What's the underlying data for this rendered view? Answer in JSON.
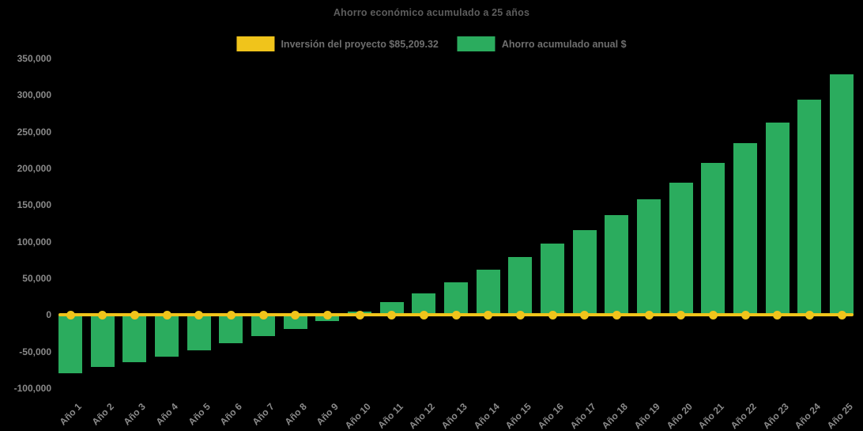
{
  "title": "Ahorro económico acumulado a 25 años",
  "legend": {
    "items": [
      {
        "label": "Inversión del proyecto $85,209.32",
        "color": "#F0C41B"
      },
      {
        "label": "Ahorro acumulado anual $",
        "color": "#2BAC5E"
      }
    ]
  },
  "y_axis": {
    "tick_labels": [
      "350,000",
      "300,000",
      "250,000",
      "200,000",
      "150,000",
      "100,000",
      "50,000",
      "0",
      "-50,000",
      "-100,000"
    ]
  },
  "colors": {
    "background": "#000000",
    "investment_line": "#F0C41B",
    "savings_bar": "#2BAC5E",
    "title_text": "#5d5d5d",
    "tick_text": "#8a8a8a",
    "legend_text": "#6e6e6e"
  },
  "chart_data": {
    "type": "bar",
    "title": "Ahorro económico acumulado a 25 años",
    "categories": [
      "Año 1",
      "Año 2",
      "Año 3",
      "Año 4",
      "Año 5",
      "Año 6",
      "Año 7",
      "Año 8",
      "Año 9",
      "Año 10",
      "Año 11",
      "Año 12",
      "Año 13",
      "Año 14",
      "Año 15",
      "Año 16",
      "Año 17",
      "Año 18",
      "Año 19",
      "Año 20",
      "Año 21",
      "Año 22",
      "Año 23",
      "Año 24",
      "Año 25"
    ],
    "series": [
      {
        "name": "Inversión del proyecto $85,209.32",
        "type": "line",
        "color": "#F0C41B",
        "values": [
          0,
          0,
          0,
          0,
          0,
          0,
          0,
          0,
          0,
          0,
          0,
          0,
          0,
          0,
          0,
          0,
          0,
          0,
          0,
          0,
          0,
          0,
          0,
          0,
          0
        ]
      },
      {
        "name": "Ahorro acumulado anual $",
        "type": "bar",
        "color": "#2BAC5E",
        "values": [
          -80000,
          -71000,
          -64000,
          -56500,
          -48000,
          -38000,
          -29000,
          -19000,
          -8000,
          4500,
          17500,
          30000,
          45000,
          62000,
          79000,
          97000,
          115500,
          136000,
          157500,
          181000,
          207500,
          234500,
          263000,
          294000,
          328000
        ]
      }
    ],
    "xlabel": "",
    "ylabel": "",
    "ylim": [
      -100000,
      350000
    ],
    "y_tick_step": 50000,
    "grid": false,
    "legend_position": "top",
    "note": "values are estimates read from bar heights; investment series is drawn as a flat marker line at the zero baseline"
  }
}
